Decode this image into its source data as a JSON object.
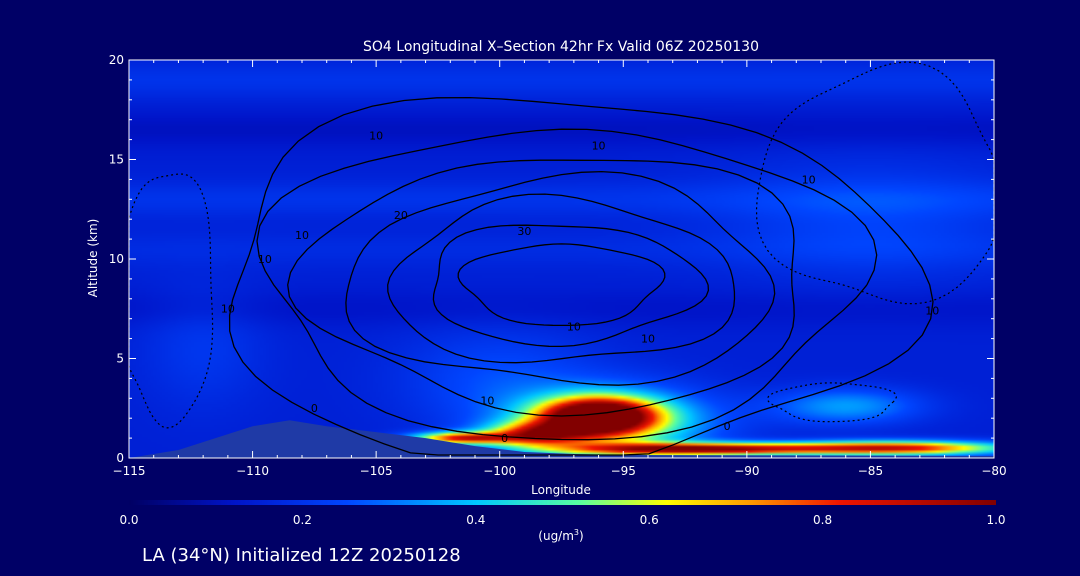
{
  "chart_data": {
    "type": "heatmap",
    "title": "SO4 Longitudinal X–Section 42hr  Fx Valid 06Z 20250130",
    "xlabel": "Longitude",
    "ylabel": "Altitude (km)",
    "xlim": [
      -115,
      -80
    ],
    "ylim": [
      0,
      20
    ],
    "x_ticks": [
      -115,
      -110,
      -105,
      -100,
      -95,
      -90,
      -85,
      -80
    ],
    "x_tick_labels": [
      "−115",
      "−110",
      "−105",
      "−100",
      "−95",
      "−90",
      "−85",
      "−80"
    ],
    "y_ticks": [
      0,
      5,
      10,
      15,
      20
    ],
    "colorbar": {
      "min": 0.0,
      "max": 1.0,
      "ticks": [
        0.0,
        0.2,
        0.4,
        0.6,
        0.8,
        1.0
      ],
      "tick_labels": [
        "0.0",
        "0.2",
        "0.4",
        "0.6",
        "0.8",
        "1.0"
      ],
      "units_label": "(ug/m",
      "units_sup": "3",
      "units_close": ")"
    },
    "background_level": 0.15,
    "blobs": [
      {
        "lon": -96.0,
        "alt": 2.1,
        "slon": 2.3,
        "salt": 0.9,
        "amp": 0.95
      },
      {
        "lon": -95.5,
        "alt": 1.7,
        "slon": 4.0,
        "salt": 1.8,
        "amp": 0.35
      },
      {
        "lon": -98.5,
        "alt": 1.2,
        "slon": 2.0,
        "salt": 0.6,
        "amp": 0.55
      },
      {
        "lon": -101.5,
        "alt": 1.0,
        "slon": 2.0,
        "salt": 0.3,
        "amp": 0.65
      },
      {
        "lon": -86.0,
        "alt": 2.6,
        "slon": 3.0,
        "salt": 0.9,
        "amp": 0.2
      },
      {
        "lon": -92.0,
        "alt": 0.45,
        "slon": 5.0,
        "salt": 0.3,
        "amp": 0.8
      },
      {
        "lon": -84.0,
        "alt": 0.5,
        "slon": 4.5,
        "salt": 0.35,
        "amp": 0.7
      },
      {
        "lon": -100.0,
        "alt": 4.0,
        "slon": 4.0,
        "salt": 2.5,
        "amp": 0.1
      },
      {
        "lon": -85.0,
        "alt": 12.0,
        "slon": 6.0,
        "salt": 3.0,
        "amp": 0.08
      },
      {
        "lon": -112.0,
        "alt": 5.5,
        "slon": 2.5,
        "salt": 3.0,
        "amp": 0.06
      }
    ],
    "stripes": [
      {
        "alt": 19.0,
        "amp": 0.05
      },
      {
        "alt": 16.5,
        "amp": -0.04
      },
      {
        "alt": 13.0,
        "amp": 0.05
      },
      {
        "alt": 10.5,
        "amp": 0.03
      },
      {
        "alt": 7.5,
        "amp": -0.03
      }
    ],
    "terrain": [
      [
        -115,
        0
      ],
      [
        -113,
        0.4
      ],
      [
        -111.5,
        1.0
      ],
      [
        -110,
        1.6
      ],
      [
        -108.5,
        1.9
      ],
      [
        -107,
        1.6
      ],
      [
        -105,
        1.3
      ],
      [
        -103,
        1.0
      ],
      [
        -101,
        0.6
      ],
      [
        -99,
        0.3
      ],
      [
        -97,
        0.2
      ],
      [
        -95,
        0.15
      ],
      [
        -80,
        0.1
      ]
    ],
    "wind_contours": {
      "center": [
        -97.5,
        8.7
      ],
      "level_labels": [
        "10",
        "20",
        "30"
      ],
      "solid": [
        {
          "level": 60,
          "rlon": 4.0,
          "ralt": 2.1
        },
        {
          "level": 50,
          "rlon": 5.5,
          "ralt": 3.1
        },
        {
          "level": 40,
          "rlon": 7.0,
          "ralt": 4.2
        },
        {
          "level": 30,
          "rlon": 8.6,
          "ralt": 5.3
        },
        {
          "level": 20,
          "rlon": 10.2,
          "ralt": 6.6
        },
        {
          "level": 10,
          "rlon": 12.0,
          "ralt": 8.0
        },
        {
          "level": 0,
          "rlon": 14.0,
          "ralt": 9.5
        }
      ],
      "dashed": [
        {
          "center": [
            -84.5,
            13.5
          ],
          "rlon": 5.0,
          "ralt": 6.0
        },
        {
          "center": [
            -113.5,
            8.0
          ],
          "rlon": 2.0,
          "ralt": 6.5
        },
        {
          "center": [
            -86.5,
            2.8
          ],
          "rlon": 2.5,
          "ralt": 1.0
        }
      ]
    },
    "contour_labels": [
      {
        "text": "0",
        "lon": -107.5,
        "alt": 2.3
      },
      {
        "text": "0",
        "lon": -99.8,
        "alt": 0.8
      },
      {
        "text": "0",
        "lon": -90.8,
        "alt": 1.4
      },
      {
        "text": "10",
        "lon": -105.0,
        "alt": 16.0
      },
      {
        "text": "20",
        "lon": -104.0,
        "alt": 12.0
      },
      {
        "text": "30",
        "lon": -99.0,
        "alt": 11.2
      },
      {
        "text": "10",
        "lon": -96.0,
        "alt": 15.5
      },
      {
        "text": "10",
        "lon": -87.5,
        "alt": 13.8
      },
      {
        "text": "10",
        "lon": -97.0,
        "alt": 6.4
      },
      {
        "text": "10",
        "lon": -94.0,
        "alt": 5.8
      },
      {
        "text": "10",
        "lon": -100.5,
        "alt": 2.7
      },
      {
        "text": "10",
        "lon": -111.0,
        "alt": 7.3
      },
      {
        "text": "10",
        "lon": -82.5,
        "alt": 7.2
      },
      {
        "text": "10",
        "lon": -108.0,
        "alt": 11.0
      },
      {
        "text": "10",
        "lon": -109.5,
        "alt": 9.8
      }
    ]
  },
  "footer": {
    "caption": "LA (34°N) Initialized 12Z 20250128"
  },
  "colors": {
    "background": "#000066",
    "axes": "#ffffff",
    "contour": "#000000",
    "terrain": "#1f3aa6"
  }
}
